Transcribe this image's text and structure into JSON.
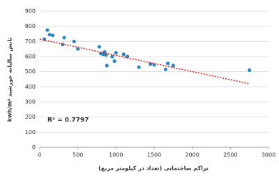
{
  "chart_data": {
    "type": "scatter",
    "y_label": "kwh/m² تابش سالیانه خورشید",
    "x_label": "تراکم ساختمانی (تعداد در کیلومتر مربع)",
    "annotation": "R² = 0.7797",
    "x": [
      60,
      100,
      130,
      170,
      300,
      320,
      450,
      500,
      780,
      800,
      830,
      850,
      870,
      880,
      950,
      980,
      1000,
      1100,
      1150,
      1300,
      1450,
      1500,
      1650,
      1680,
      1750,
      2750
    ],
    "values": [
      715,
      775,
      745,
      740,
      680,
      725,
      700,
      650,
      665,
      620,
      615,
      630,
      610,
      540,
      600,
      570,
      625,
      615,
      600,
      530,
      550,
      545,
      515,
      555,
      540,
      510
    ],
    "color": "#2e86c1",
    "trendline": {
      "x": [
        0,
        2750
      ],
      "values": [
        715,
        420
      ],
      "color": "#e02020"
    },
    "xlim": [
      0,
      3000
    ],
    "xticks": [
      0,
      500,
      1000,
      1500,
      2000,
      2500,
      3000
    ],
    "ylim": [
      0,
      900
    ],
    "yticks": [
      0,
      100,
      200,
      300,
      400,
      500,
      600,
      700,
      800,
      900
    ],
    "grid": true
  }
}
